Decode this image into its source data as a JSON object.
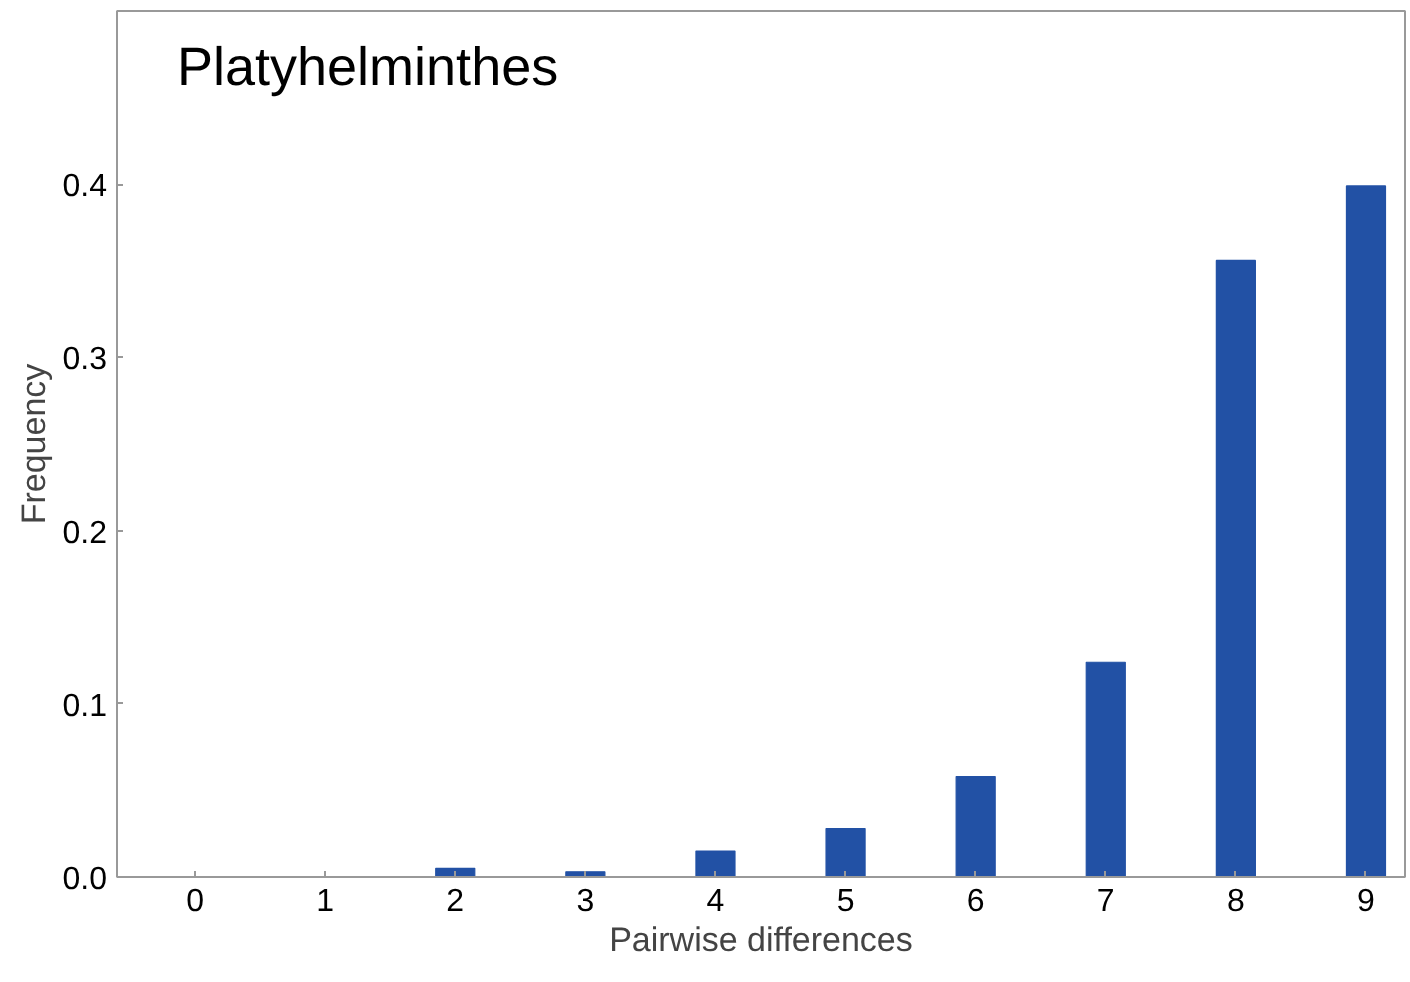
{
  "chart_data": {
    "type": "bar",
    "title": "Platyhelminthes",
    "xlabel": "Pairwise differences",
    "ylabel": "Frequency",
    "x": [
      0,
      1,
      2,
      3,
      4,
      5,
      6,
      7,
      8,
      9
    ],
    "values": [
      0,
      0,
      0.005,
      0.003,
      0.015,
      0.028,
      0.058,
      0.124,
      0.356,
      0.399
    ],
    "color": "#2251a5",
    "xlim": [
      -0.6,
      9.3
    ],
    "xticks": [
      0,
      1,
      2,
      3,
      4,
      5,
      6,
      7,
      8,
      9
    ],
    "ylim": [
      0,
      0.5
    ],
    "yticks": [
      {
        "value": 0,
        "label": "0.0"
      },
      0.1,
      0.2,
      0.3,
      0.4
    ],
    "grid": false
  }
}
